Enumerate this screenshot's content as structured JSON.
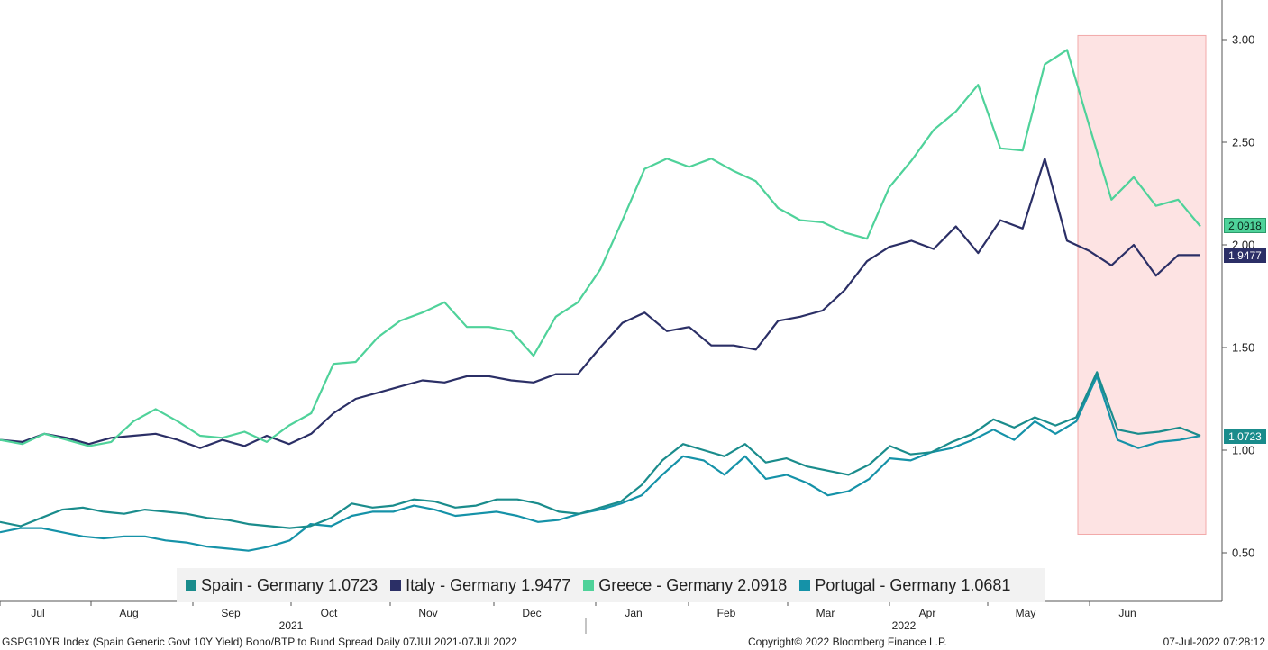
{
  "chart_data": {
    "type": "line",
    "yaxis": {
      "position": "right",
      "ylim": [
        0.25,
        3.2
      ],
      "ticks": [
        "3.00",
        "2.50",
        "2.00",
        "1.50",
        "1.00",
        "0.50"
      ]
    },
    "xaxis": {
      "months": [
        "Jul",
        "Aug",
        "Sep",
        "Oct",
        "Nov",
        "Dec",
        "Jan",
        "Feb",
        "Mar",
        "Apr",
        "May",
        "Jun"
      ],
      "years": [
        "2021",
        "2022"
      ]
    },
    "highlight": {
      "from_week": 39,
      "to_week": 52,
      "ymin": 0.59,
      "ymax": 3.02,
      "color": "#fde3e3"
    },
    "grid": false,
    "legend": {
      "placement": "bottom"
    },
    "series": [
      {
        "key": "spain",
        "name": "Spain - Germany 1.0723",
        "last": "1.0723",
        "color": "#1a8c8c",
        "values": [
          0.65,
          0.63,
          0.67,
          0.71,
          0.72,
          0.7,
          0.69,
          0.71,
          0.7,
          0.69,
          0.67,
          0.66,
          0.64,
          0.63,
          0.62,
          0.63,
          0.67,
          0.74,
          0.72,
          0.73,
          0.76,
          0.75,
          0.72,
          0.73,
          0.76,
          0.76,
          0.74,
          0.7,
          0.69,
          0.72,
          0.75,
          0.83,
          0.95,
          1.03,
          1.0,
          0.97,
          1.03,
          0.94,
          0.96,
          0.92,
          0.9,
          0.88,
          0.93,
          1.02,
          0.98,
          0.99,
          1.04,
          1.08,
          1.15,
          1.11,
          1.16,
          1.12,
          1.16,
          1.38,
          1.1,
          1.08,
          1.09,
          1.11,
          1.07
        ]
      },
      {
        "key": "italy",
        "name": "Italy - Germany 1.9477",
        "last": "1.9477",
        "color": "#2b2f66",
        "values": [
          1.05,
          1.04,
          1.08,
          1.06,
          1.03,
          1.06,
          1.07,
          1.08,
          1.05,
          1.01,
          1.05,
          1.02,
          1.07,
          1.03,
          1.08,
          1.18,
          1.25,
          1.28,
          1.31,
          1.34,
          1.33,
          1.36,
          1.36,
          1.34,
          1.33,
          1.37,
          1.37,
          1.5,
          1.62,
          1.67,
          1.58,
          1.6,
          1.51,
          1.51,
          1.49,
          1.63,
          1.65,
          1.68,
          1.78,
          1.92,
          1.99,
          2.02,
          1.98,
          2.09,
          1.96,
          2.12,
          2.08,
          2.42,
          2.02,
          1.97,
          1.9,
          2.0,
          1.85,
          1.95,
          1.95
        ]
      },
      {
        "key": "greece",
        "name": "Greece - Germany 2.0918",
        "last": "2.0918",
        "color": "#4fd29a",
        "values": [
          1.05,
          1.03,
          1.08,
          1.05,
          1.02,
          1.04,
          1.14,
          1.2,
          1.14,
          1.07,
          1.06,
          1.09,
          1.04,
          1.12,
          1.18,
          1.42,
          1.43,
          1.55,
          1.63,
          1.67,
          1.72,
          1.6,
          1.6,
          1.58,
          1.46,
          1.65,
          1.72,
          1.88,
          2.12,
          2.37,
          2.42,
          2.38,
          2.42,
          2.36,
          2.31,
          2.18,
          2.12,
          2.11,
          2.06,
          2.03,
          2.28,
          2.41,
          2.56,
          2.65,
          2.78,
          2.47,
          2.46,
          2.88,
          2.95,
          2.58,
          2.22,
          2.33,
          2.19,
          2.22,
          2.09
        ]
      },
      {
        "key": "portugal",
        "name": "Portugal - Germany 1.0681",
        "last": "1.0681",
        "color": "#1592a8",
        "values": [
          0.6,
          0.62,
          0.62,
          0.6,
          0.58,
          0.57,
          0.58,
          0.58,
          0.56,
          0.55,
          0.53,
          0.52,
          0.51,
          0.53,
          0.56,
          0.64,
          0.63,
          0.68,
          0.7,
          0.7,
          0.73,
          0.71,
          0.68,
          0.69,
          0.7,
          0.68,
          0.65,
          0.66,
          0.69,
          0.71,
          0.74,
          0.78,
          0.88,
          0.97,
          0.95,
          0.88,
          0.97,
          0.86,
          0.88,
          0.84,
          0.78,
          0.8,
          0.86,
          0.96,
          0.95,
          0.99,
          1.01,
          1.05,
          1.1,
          1.05,
          1.14,
          1.08,
          1.14,
          1.36,
          1.05,
          1.01,
          1.04,
          1.05,
          1.07
        ]
      }
    ]
  },
  "footer": {
    "left": "GSPG10YR Index (Spain Generic Govt 10Y Yield) Bono/BTP to Bund Spread  Daily 07JUL2021-07JUL2022",
    "center": "Copyright© 2022 Bloomberg Finance L.P.",
    "right": "07-Jul-2022 07:28:12"
  }
}
